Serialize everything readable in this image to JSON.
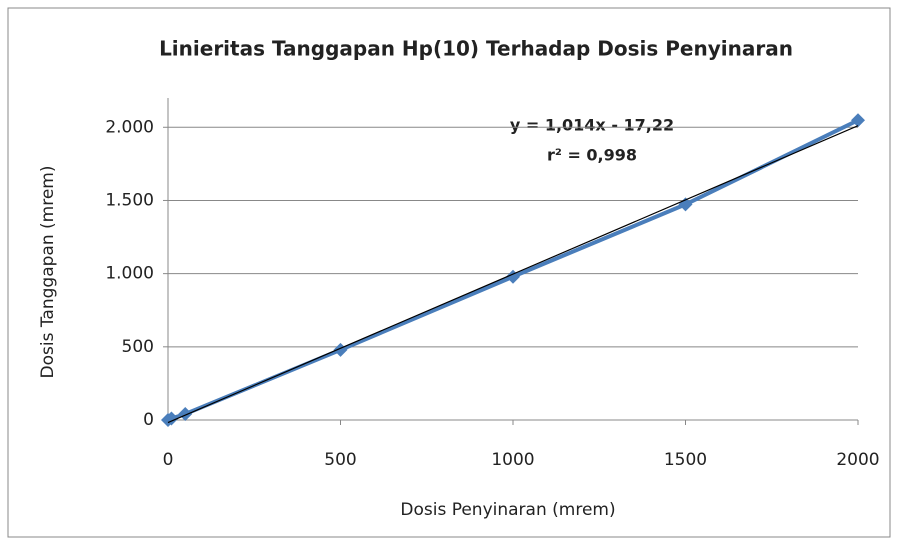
{
  "chart_data": {
    "type": "scatter",
    "title": "Linieritas   Tanggapan Hp(10) Terhadap Dosis Penyinaran",
    "x_label": "Dosis Penyinaran (mrem)",
    "y_label": "Dosis  Tanggapan (mrem)",
    "x": [
      0,
      10,
      50,
      500,
      1000,
      1500,
      2000
    ],
    "series": [
      {
        "name": "Dosis Tanggapan",
        "color": "#4a7ebb",
        "values": [
          0,
          10,
          41,
          479,
          979,
          1473,
          2048
        ]
      }
    ],
    "xlim": [
      0,
      2000
    ],
    "ylim": [
      0,
      2200
    ],
    "xticks": [
      0,
      500,
      1000,
      1500,
      2000
    ],
    "yticks": [
      0,
      500,
      {
        "value": 1000,
        "label": "1.000"
      },
      {
        "value": 1500,
        "label": "1.500"
      },
      {
        "value": 2000,
        "label": "2.000"
      }
    ],
    "grid": true,
    "trendline": {
      "label": "y = 1,014x - 17,22",
      "slope": 1.014,
      "intercept": -17.22,
      "color": "#000000"
    },
    "r2_label": "r² = 0,998"
  }
}
